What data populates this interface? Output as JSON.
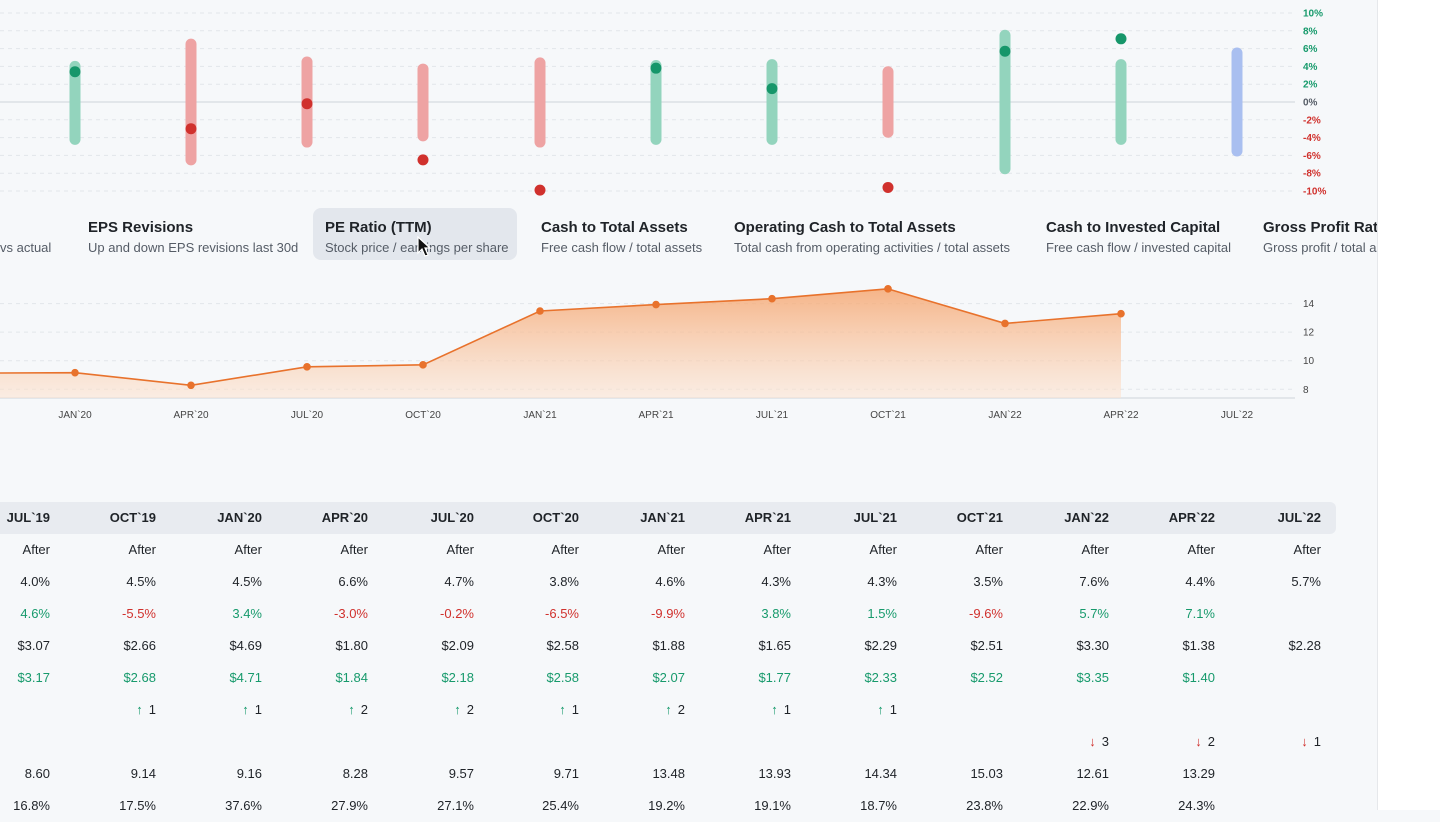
{
  "colors": {
    "positive": "#179a6c",
    "negative": "#d0312d",
    "pe_line": "#e8722c",
    "neutral_bar": "#a9bff0"
  },
  "revision_chart": {
    "y_ticks": [
      "10%",
      "8%",
      "6%",
      "4%",
      "2%",
      "0%",
      "-2%",
      "-4%",
      "-6%",
      "-8%",
      "-10%"
    ],
    "y_min": -10,
    "y_max": 10,
    "bars": [
      {
        "low": -4.2,
        "high": 4.0,
        "dot": 3.4,
        "tone": "positive"
      },
      {
        "low": -6.5,
        "high": 6.5,
        "dot": -3.0,
        "tone": "negative"
      },
      {
        "low": -4.5,
        "high": 4.5,
        "dot": -0.2,
        "tone": "negative"
      },
      {
        "low": -3.8,
        "high": 3.7,
        "dot": -6.5,
        "tone": "negative"
      },
      {
        "low": -4.5,
        "high": 4.4,
        "dot": -9.9,
        "tone": "negative"
      },
      {
        "low": -4.2,
        "high": 4.1,
        "dot": 3.8,
        "tone": "positive"
      },
      {
        "low": -4.2,
        "high": 4.2,
        "dot": 1.5,
        "tone": "positive"
      },
      {
        "low": -3.4,
        "high": 3.4,
        "dot": -9.6,
        "tone": "negative"
      },
      {
        "low": -7.5,
        "high": 7.5,
        "dot": 5.7,
        "tone": "positive"
      },
      {
        "low": -4.2,
        "high": 4.2,
        "dot": 7.1,
        "tone": "positive"
      },
      {
        "low": -5.5,
        "high": 5.5,
        "dot": null,
        "tone": "neutral"
      }
    ]
  },
  "metric_tabs": [
    {
      "title": "",
      "subtitle": "vs actual",
      "active": false
    },
    {
      "title": "EPS Revisions",
      "subtitle": "Up and down EPS revisions last 30d",
      "active": false
    },
    {
      "title": "PE Ratio (TTM)",
      "subtitle": "Stock price / earnings per share",
      "active": true
    },
    {
      "title": "Cash to Total Assets",
      "subtitle": "Free cash flow / total assets",
      "active": false
    },
    {
      "title": "Operating Cash to Total Assets",
      "subtitle": "Total cash from operating activities / total assets",
      "active": false
    },
    {
      "title": "Cash to Invested Capital",
      "subtitle": "Free cash flow / invested capital",
      "active": false
    },
    {
      "title": "Gross Profit Ratio",
      "subtitle": "Gross profit / total assets",
      "active": false
    }
  ],
  "chart_data": {
    "type": "area",
    "x": [
      "OCT`19",
      "JAN`20",
      "APR`20",
      "JUL`20",
      "OCT`20",
      "JAN`21",
      "APR`21",
      "JUL`21",
      "OCT`21",
      "JAN`22",
      "APR`22",
      "JUL`22"
    ],
    "x_tick_labels": [
      "JAN`20",
      "APR`20",
      "JUL`20",
      "OCT`20",
      "JAN`21",
      "APR`21",
      "JUL`21",
      "OCT`21",
      "JAN`22",
      "APR`22",
      "JUL`22"
    ],
    "series": [
      {
        "values": [
          9.14,
          9.16,
          8.28,
          9.57,
          9.71,
          13.48,
          13.93,
          14.34,
          15.03,
          12.61,
          13.29,
          null
        ]
      }
    ],
    "y_ticks": [
      "14",
      "12",
      "10",
      "8"
    ],
    "ylim": [
      7.6,
      15.3
    ],
    "grid": true
  },
  "table": {
    "columns": [
      "JUL`19",
      "OCT`19",
      "JAN`20",
      "APR`20",
      "JUL`20",
      "OCT`20",
      "JAN`21",
      "APR`21",
      "JUL`21",
      "OCT`21",
      "JAN`22",
      "APR`22",
      "JUL`22"
    ],
    "rows": [
      {
        "cells": [
          {
            "t": "After"
          },
          {
            "t": "After"
          },
          {
            "t": "After"
          },
          {
            "t": "After"
          },
          {
            "t": "After"
          },
          {
            "t": "After"
          },
          {
            "t": "After"
          },
          {
            "t": "After"
          },
          {
            "t": "After"
          },
          {
            "t": "After"
          },
          {
            "t": "After"
          },
          {
            "t": "After"
          },
          {
            "t": "After"
          }
        ]
      },
      {
        "cells": [
          {
            "t": "4.0%"
          },
          {
            "t": "4.5%"
          },
          {
            "t": "4.5%"
          },
          {
            "t": "6.6%"
          },
          {
            "t": "4.7%"
          },
          {
            "t": "3.8%"
          },
          {
            "t": "4.6%"
          },
          {
            "t": "4.3%"
          },
          {
            "t": "4.3%"
          },
          {
            "t": "3.5%"
          },
          {
            "t": "7.6%"
          },
          {
            "t": "4.4%"
          },
          {
            "t": "5.7%"
          }
        ]
      },
      {
        "cells": [
          {
            "t": "4.6%",
            "c": "pos"
          },
          {
            "t": "-5.5%",
            "c": "neg"
          },
          {
            "t": "3.4%",
            "c": "pos"
          },
          {
            "t": "-3.0%",
            "c": "neg"
          },
          {
            "t": "-0.2%",
            "c": "neg"
          },
          {
            "t": "-6.5%",
            "c": "neg"
          },
          {
            "t": "-9.9%",
            "c": "neg"
          },
          {
            "t": "3.8%",
            "c": "pos"
          },
          {
            "t": "1.5%",
            "c": "pos"
          },
          {
            "t": "-9.6%",
            "c": "neg"
          },
          {
            "t": "5.7%",
            "c": "pos"
          },
          {
            "t": "7.1%",
            "c": "pos"
          },
          {
            "t": ""
          }
        ]
      },
      {
        "cells": [
          {
            "t": "$3.07"
          },
          {
            "t": "$2.66"
          },
          {
            "t": "$4.69"
          },
          {
            "t": "$1.80"
          },
          {
            "t": "$2.09"
          },
          {
            "t": "$2.58"
          },
          {
            "t": "$1.88"
          },
          {
            "t": "$1.65"
          },
          {
            "t": "$2.29"
          },
          {
            "t": "$2.51"
          },
          {
            "t": "$3.30"
          },
          {
            "t": "$1.38"
          },
          {
            "t": "$2.28"
          }
        ]
      },
      {
        "cells": [
          {
            "t": "$3.17",
            "c": "pos"
          },
          {
            "t": "$2.68",
            "c": "pos"
          },
          {
            "t": "$4.71",
            "c": "pos"
          },
          {
            "t": "$1.84",
            "c": "pos"
          },
          {
            "t": "$2.18",
            "c": "pos"
          },
          {
            "t": "$2.58",
            "c": "pos"
          },
          {
            "t": "$2.07",
            "c": "pos"
          },
          {
            "t": "$1.77",
            "c": "pos"
          },
          {
            "t": "$2.33",
            "c": "pos"
          },
          {
            "t": "$2.52",
            "c": "pos"
          },
          {
            "t": "$3.35",
            "c": "pos"
          },
          {
            "t": "$1.40",
            "c": "pos"
          },
          {
            "t": ""
          }
        ]
      },
      {
        "cells": [
          {
            "t": ""
          },
          {
            "t": "1",
            "arrow": "up"
          },
          {
            "t": "1",
            "arrow": "up"
          },
          {
            "t": "2",
            "arrow": "up"
          },
          {
            "t": "2",
            "arrow": "up"
          },
          {
            "t": "1",
            "arrow": "up"
          },
          {
            "t": "2",
            "arrow": "up"
          },
          {
            "t": "1",
            "arrow": "up"
          },
          {
            "t": "1",
            "arrow": "up"
          },
          {
            "t": ""
          },
          {
            "t": ""
          },
          {
            "t": ""
          },
          {
            "t": ""
          }
        ]
      },
      {
        "cells": [
          {
            "t": ""
          },
          {
            "t": ""
          },
          {
            "t": ""
          },
          {
            "t": ""
          },
          {
            "t": ""
          },
          {
            "t": ""
          },
          {
            "t": ""
          },
          {
            "t": ""
          },
          {
            "t": ""
          },
          {
            "t": ""
          },
          {
            "t": "3",
            "arrow": "down"
          },
          {
            "t": "2",
            "arrow": "down"
          },
          {
            "t": "1",
            "arrow": "down"
          }
        ]
      },
      {
        "cells": [
          {
            "t": "8.60"
          },
          {
            "t": "9.14"
          },
          {
            "t": "9.16"
          },
          {
            "t": "8.28"
          },
          {
            "t": "9.57"
          },
          {
            "t": "9.71"
          },
          {
            "t": "13.48"
          },
          {
            "t": "13.93"
          },
          {
            "t": "14.34"
          },
          {
            "t": "15.03"
          },
          {
            "t": "12.61"
          },
          {
            "t": "13.29"
          },
          {
            "t": ""
          }
        ]
      },
      {
        "cells": [
          {
            "t": "16.8%"
          },
          {
            "t": "17.5%"
          },
          {
            "t": "37.6%"
          },
          {
            "t": "27.9%"
          },
          {
            "t": "27.1%"
          },
          {
            "t": "25.4%"
          },
          {
            "t": "19.2%"
          },
          {
            "t": "19.1%"
          },
          {
            "t": "18.7%"
          },
          {
            "t": "23.8%"
          },
          {
            "t": "22.9%"
          },
          {
            "t": "24.3%"
          },
          {
            "t": ""
          }
        ]
      }
    ]
  }
}
